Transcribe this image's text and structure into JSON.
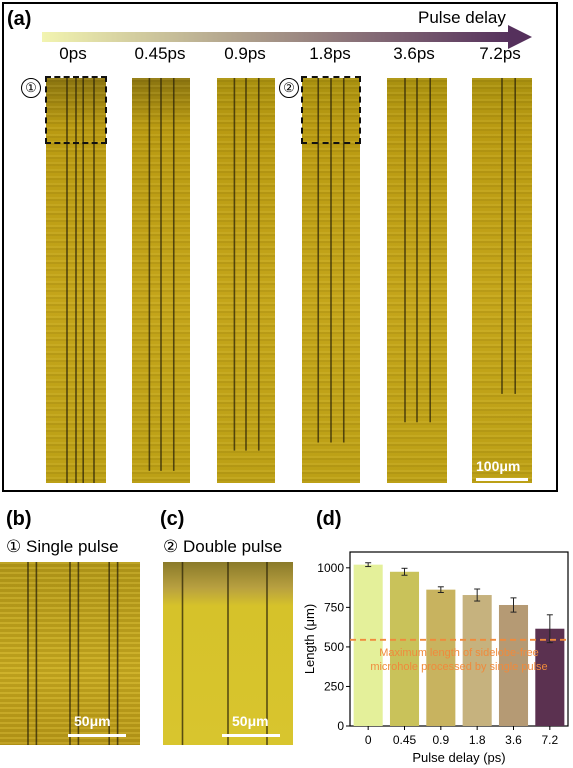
{
  "panel_a": {
    "label": "(a)",
    "arrow_label": "Pulse delay",
    "delays": [
      "0ps",
      "0.45ps",
      "0.9ps",
      "1.8ps",
      "3.6ps",
      "7.2ps"
    ],
    "marker_1": "①",
    "marker_2": "②",
    "scale_bar": "100μm"
  },
  "panel_b": {
    "label": "(b)",
    "marker": "①",
    "title": "Single pulse",
    "scale_bar": "50μm"
  },
  "panel_c": {
    "label": "(c)",
    "marker": "②",
    "title": "Double pulse",
    "scale_bar": "50μm"
  },
  "panel_d": {
    "label": "(d)"
  },
  "colors": {
    "gradient_start": "#f2f4b0",
    "gradient_end": "#55305c",
    "strip_base": "#b99a12",
    "annotation": "#f08a3c"
  },
  "chart_data": {
    "type": "bar",
    "categories": [
      "0",
      "0.45",
      "0.9",
      "1.8",
      "3.6",
      "7.2"
    ],
    "values": [
      1020,
      975,
      862,
      828,
      765,
      615
    ],
    "errors": [
      12,
      22,
      18,
      38,
      45,
      88
    ],
    "bar_colors": [
      "#e4f09a",
      "#c9c25a",
      "#c8b35f",
      "#c6b27e",
      "#b59a74",
      "#5b3150"
    ],
    "xlabel": "Pulse delay (ps)",
    "ylabel": "Length (μm)",
    "ylim": [
      0,
      1100
    ],
    "yticks": [
      0,
      250,
      500,
      750,
      1000
    ],
    "reference_line": {
      "value": 545,
      "label": "Maximum length of sidelobe-free microhole processed by single pulse"
    }
  }
}
